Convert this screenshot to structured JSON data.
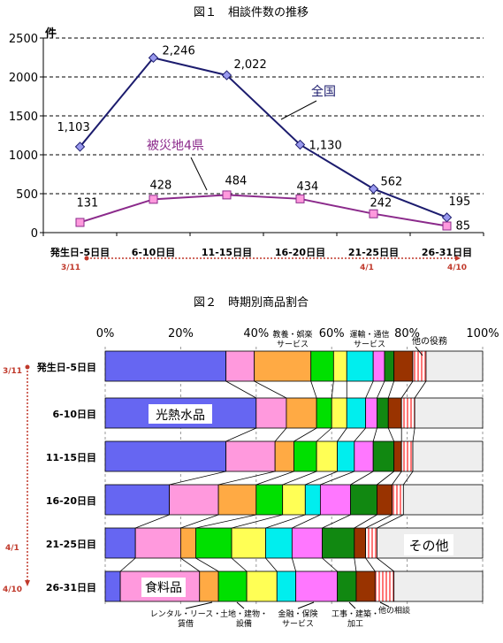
{
  "chart_data": [
    {
      "type": "line",
      "title": "図１　相談件数の推移",
      "ylabel": "件",
      "ylim": [
        0,
        2500
      ],
      "yticks": [
        0,
        500,
        1000,
        1500,
        2000,
        2500
      ],
      "grid": "dashed horizontal",
      "categories": [
        "発生日-5日目",
        "6-10日目",
        "11-15日目",
        "16-20日目",
        "21-25日目",
        "26-31日目"
      ],
      "series": [
        {
          "name": "全国",
          "values": [
            1103,
            2246,
            2022,
            1130,
            562,
            195
          ],
          "labels": [
            "1,103",
            "2,246",
            "2,022",
            "1,130",
            "562",
            "195"
          ],
          "color": "#1c1c6e"
        },
        {
          "name": "被災地4県",
          "values": [
            131,
            428,
            484,
            434,
            242,
            85
          ],
          "labels": [
            "131",
            "428",
            "484",
            "434",
            "242",
            "85"
          ],
          "color": "#8b2a8b"
        }
      ],
      "date_markers": {
        "start": "3/11",
        "mid": "4/1",
        "end": "4/10",
        "color": "#c0392b"
      }
    },
    {
      "type": "bar",
      "title": "図２　時期別商品割合",
      "orientation": "horizontal stacked 100%",
      "xticks": [
        "0%",
        "20%",
        "40%",
        "60%",
        "80%",
        "100%"
      ],
      "categories": [
        "発生日-5日目",
        "6-10日目",
        "11-15日目",
        "16-20日目",
        "21-25日目",
        "26-31日目"
      ],
      "segment_labels": {
        "koneri": "光熱水品",
        "food": "食料品",
        "other": "その他",
        "kyoyo": "教養・娯楽\nサービス",
        "unyu": "運輸・通信\nサービス",
        "yakumu": "他の役務",
        "rental": "レンタル・リース・\n賃借",
        "tochi": "土地・建物・\n設備",
        "kinyu": "金融・保険\nサービス",
        "koji": "工事・建築・\n加工",
        "soudan": "他の相談"
      },
      "series": [
        {
          "name": "光熱水品",
          "color": "#6666f2",
          "values": [
            32.0,
            40.0,
            32.0,
            17.0,
            8.0,
            4.0
          ]
        },
        {
          "name": "食料品",
          "color": "#ff99dd",
          "values": [
            7.5,
            8.0,
            13.0,
            13.0,
            12.0,
            21.0
          ]
        },
        {
          "name": "レンタル・リース・賃借",
          "color": "#ffaa44",
          "values": [
            15.0,
            8.0,
            5.0,
            10.0,
            4.0,
            5.0
          ]
        },
        {
          "name": "土地・建物・設備",
          "color": "#00e000",
          "values": [
            6.0,
            4.0,
            6.0,
            7.0,
            9.5,
            7.5
          ]
        },
        {
          "name": "教養・娯楽サービス",
          "color": "#ffff55",
          "values": [
            3.5,
            4.0,
            5.5,
            6.0,
            9.0,
            8.0
          ]
        },
        {
          "name": "運輸・通信サービス",
          "color": "#00eeee",
          "values": [
            7.0,
            5.0,
            4.5,
            4.0,
            7.0,
            5.0
          ]
        },
        {
          "name": "金融・保険サービス",
          "color": "#ff77ff",
          "values": [
            3.0,
            3.0,
            5.0,
            8.0,
            8.0,
            11.0
          ]
        },
        {
          "name": "工事・建築・加工",
          "color": "#118811",
          "values": [
            2.5,
            3.0,
            5.5,
            7.0,
            8.5,
            5.0
          ]
        },
        {
          "name": "他の相談",
          "color": "#993300",
          "values": [
            5.0,
            3.5,
            2.0,
            4.0,
            3.0,
            5.0
          ]
        },
        {
          "name": "他の役務",
          "color": "#ff9999",
          "values": [
            3.5,
            3.5,
            3.0,
            3.0,
            3.0,
            5.0
          ]
        },
        {
          "name": "その他",
          "color": "#eeeeee",
          "values": [
            15.0,
            18.0,
            18.5,
            21.0,
            28.0,
            23.5
          ]
        }
      ],
      "date_markers": {
        "start": "3/11",
        "mid": "4/1",
        "end": "4/10",
        "color": "#c0392b"
      }
    }
  ]
}
